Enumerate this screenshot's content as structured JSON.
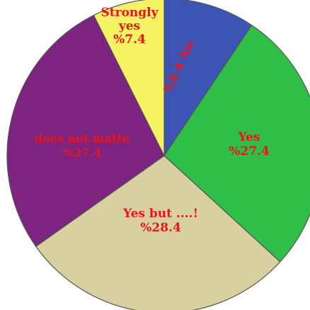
{
  "chart_data": {
    "type": "pie",
    "start_angle_deg": 0,
    "direction": "clockwise",
    "slices": [
      {
        "name": "No",
        "value": 9.4,
        "label_lines": [
          "%9.4  No"
        ],
        "color": "#3c55b4"
      },
      {
        "name": "Yes",
        "value": 27.4,
        "label_lines": [
          "Yes",
          "%27.4"
        ],
        "color": "#2fbe47"
      },
      {
        "name": "Yes but ....!",
        "value": 28.4,
        "label_lines": [
          "Yes but ....!",
          "%28.4"
        ],
        "color": "#d8d0a0"
      },
      {
        "name": "does not  matte",
        "value": 27.4,
        "label_lines": [
          "does not  matte",
          "%27.4"
        ],
        "color": "#7d2480"
      },
      {
        "name": "Strongly yes",
        "value": 7.4,
        "label_lines": [
          "Strongly",
          "yes",
          "%7.4"
        ],
        "color": "#f5f264"
      }
    ]
  }
}
